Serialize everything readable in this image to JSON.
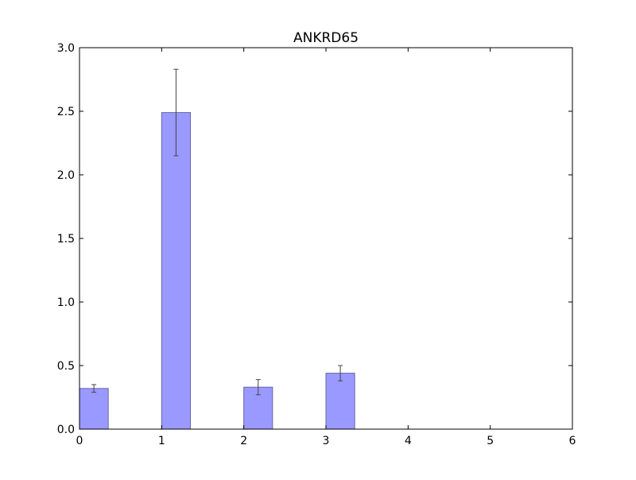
{
  "chart_data": {
    "type": "bar",
    "title": "ANKRD65",
    "xlabel": "",
    "ylabel": "",
    "x": [
      0,
      1,
      2,
      3
    ],
    "values": [
      0.32,
      2.49,
      0.33,
      0.44
    ],
    "errors": [
      0.03,
      0.34,
      0.06,
      0.06
    ],
    "bar_width": 0.35,
    "xlim": [
      0,
      6
    ],
    "ylim": [
      0,
      3.0
    ],
    "xticks": [
      "0",
      "1",
      "2",
      "3",
      "4",
      "5",
      "6"
    ],
    "yticks": [
      "0.0",
      "0.5",
      "1.0",
      "1.5",
      "2.0",
      "2.5",
      "3.0"
    ],
    "grid": false,
    "legend": "none",
    "colors": {
      "bar_fill": "#9999ff",
      "bar_edge": "#6666aa",
      "error_bar": "#444444",
      "axes": "#000000"
    }
  }
}
